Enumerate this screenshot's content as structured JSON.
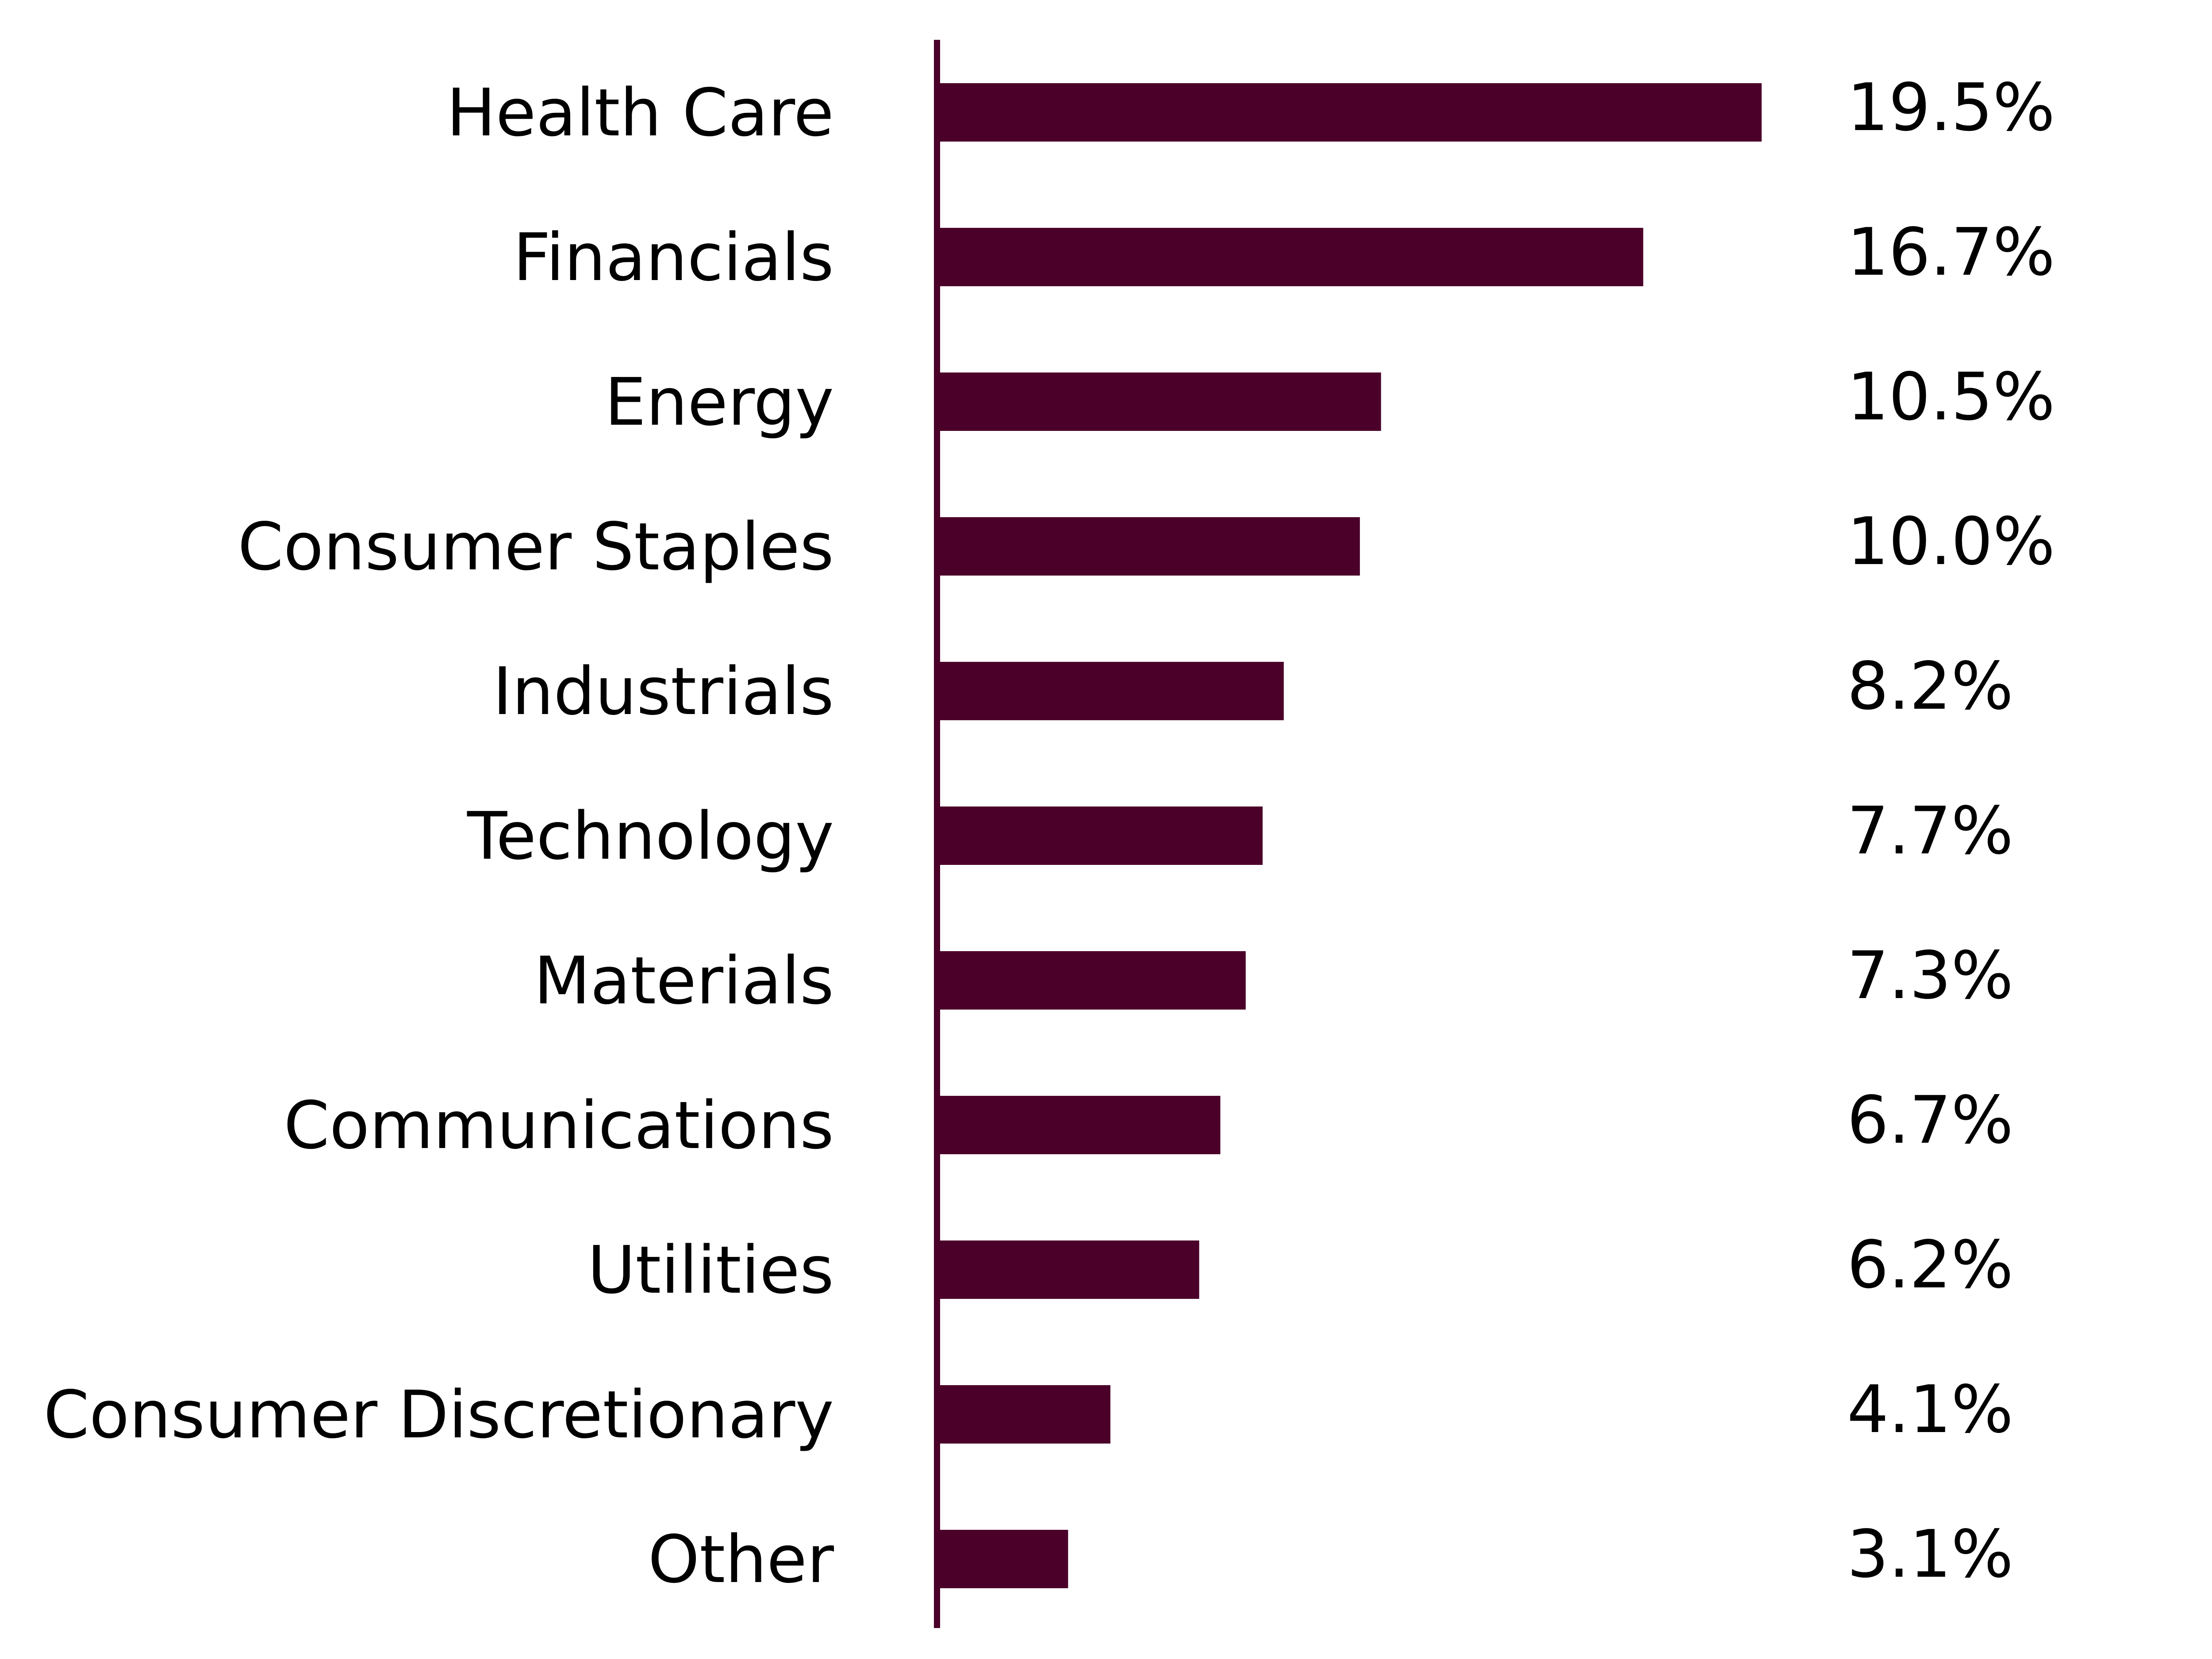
{
  "chart_data": {
    "type": "bar",
    "orientation": "horizontal",
    "categories": [
      "Health Care",
      "Financials",
      "Energy",
      "Consumer Staples",
      "Industrials",
      "Technology",
      "Materials",
      "Communications",
      "Utilities",
      "Consumer Discretionary",
      "Other"
    ],
    "values": [
      19.5,
      16.7,
      10.5,
      10.0,
      8.2,
      7.7,
      7.3,
      6.7,
      6.2,
      4.1,
      3.1
    ],
    "value_labels": [
      "19.5%",
      "16.7%",
      "10.5%",
      "10.0%",
      "8.2%",
      "7.7%",
      "7.3%",
      "6.7%",
      "6.2%",
      "4.1%",
      "3.1%"
    ],
    "bar_color": "#4b0029",
    "axis_color": "#4b0029",
    "text_color": "#000000",
    "xlim": [
      0,
      19.5
    ],
    "grid": false,
    "legend": "none"
  }
}
